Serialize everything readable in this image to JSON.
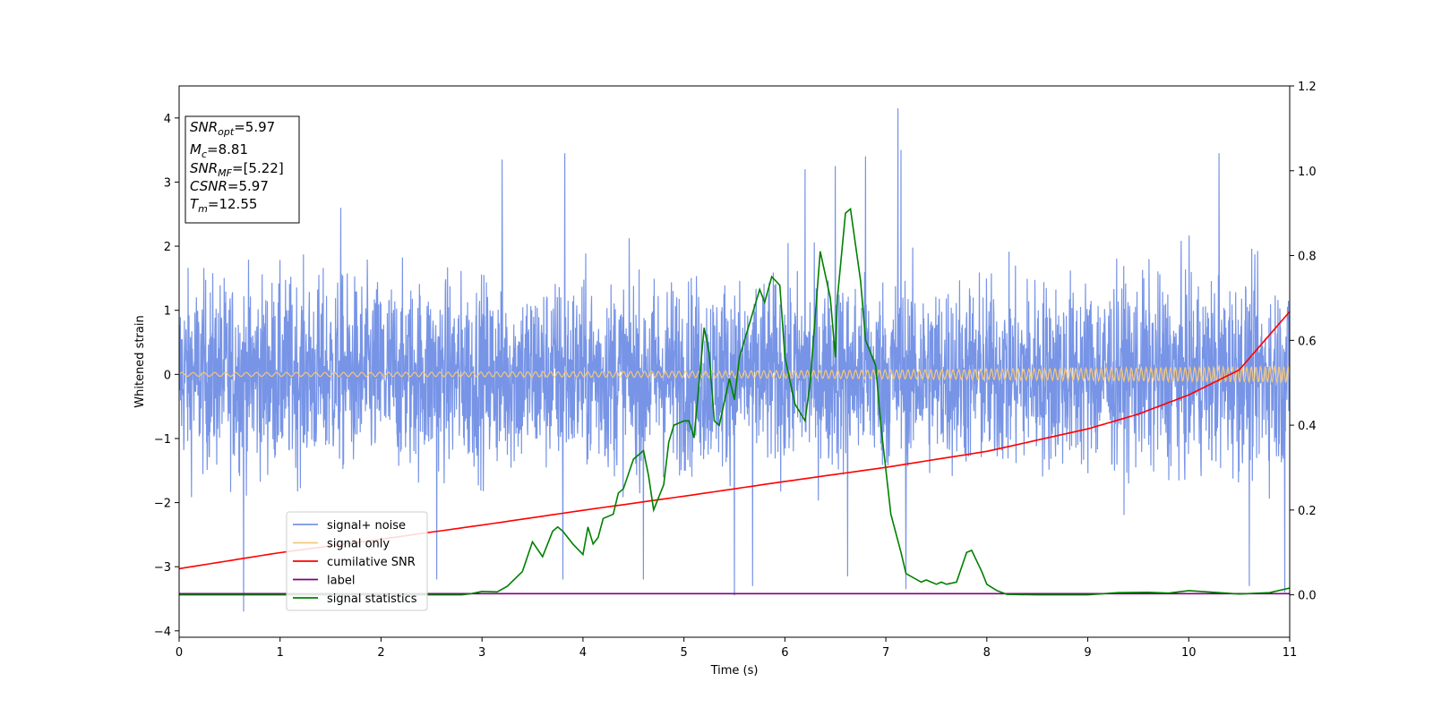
{
  "chart_data": {
    "type": "line",
    "xlabel": "Time (s)",
    "ylabel": "Whitened strain",
    "xlim": [
      0,
      11
    ],
    "ylim_left": [
      -4.1,
      4.5
    ],
    "ylim_right": [
      -0.1,
      1.2
    ],
    "x_ticks": [
      0,
      1,
      2,
      3,
      4,
      5,
      6,
      7,
      8,
      9,
      10,
      11
    ],
    "y_ticks_left": [
      "−4",
      "−3",
      "−2",
      "−1",
      "0",
      "1",
      "2",
      "3",
      "4"
    ],
    "y_ticks_right": [
      "0.0",
      "0.2",
      "0.4",
      "0.6",
      "0.8",
      "1.0",
      "1.2"
    ],
    "info_box": [
      {
        "main": "SNR",
        "sub": "opt",
        "rest": "=5.97"
      },
      {
        "main": "M",
        "sub": "c",
        "rest": "=8.81"
      },
      {
        "main": "SNR",
        "sub": "MF",
        "rest": "=[5.22]"
      },
      {
        "main": "CSNR",
        "sub": "",
        "rest": "=5.97"
      },
      {
        "main": "T",
        "sub": "m",
        "rest": "=12.55"
      }
    ],
    "legend": {
      "placement": "lower-left",
      "entries": [
        {
          "label": "signal+ noise",
          "color": "#7794e6"
        },
        {
          "label": "signal only",
          "color": "#f5c77a"
        },
        {
          "label": "cumilative SNR",
          "color": "#ff0000"
        },
        {
          "label": "label",
          "color": "#800080"
        },
        {
          "label": "signal statistics",
          "color": "#008000"
        }
      ]
    },
    "series": [
      {
        "name": "signal+ noise",
        "axis": "left",
        "style": "noise",
        "envelope_abs": 1.9,
        "envelope_extremes": [
          [
            0.64,
            -3.7
          ],
          [
            1.6,
            2.6
          ],
          [
            2.55,
            -3.2
          ],
          [
            3.2,
            3.35
          ],
          [
            3.8,
            -3.2
          ],
          [
            3.82,
            3.45
          ],
          [
            4.6,
            -3.2
          ],
          [
            5.5,
            -3.45
          ],
          [
            5.68,
            -3.3
          ],
          [
            6.2,
            3.2
          ],
          [
            6.5,
            3.25
          ],
          [
            6.62,
            -3.15
          ],
          [
            6.8,
            3.4
          ],
          [
            7.12,
            4.15
          ],
          [
            7.15,
            3.5
          ],
          [
            7.2,
            -3.35
          ],
          [
            10.3,
            3.45
          ],
          [
            10.6,
            -3.3
          ],
          [
            10.95,
            -3.4
          ]
        ]
      },
      {
        "name": "signal only",
        "axis": "left",
        "style": "chirp",
        "amplitude_start": 0.03,
        "amplitude_end": 0.13
      },
      {
        "name": "cumilative SNR",
        "axis": "left",
        "x": [
          0,
          1,
          2,
          3,
          4,
          5,
          6,
          7,
          8,
          9,
          9.5,
          10,
          10.5,
          11
        ],
        "y": [
          -3.03,
          -2.78,
          -2.57,
          -2.35,
          -2.12,
          -1.9,
          -1.67,
          -1.45,
          -1.2,
          -0.85,
          -0.62,
          -0.32,
          0.07,
          0.98
        ]
      },
      {
        "name": "label",
        "axis": "left",
        "x": [
          0,
          11
        ],
        "y": [
          -3.42,
          -3.42
        ]
      },
      {
        "name": "signal statistics",
        "axis": "right",
        "x": [
          0,
          0.5,
          1,
          1.5,
          2,
          2.5,
          2.8,
          2.9,
          3.0,
          3.15,
          3.25,
          3.4,
          3.5,
          3.6,
          3.7,
          3.75,
          3.8,
          3.9,
          4.0,
          4.05,
          4.1,
          4.15,
          4.2,
          4.3,
          4.35,
          4.4,
          4.5,
          4.6,
          4.65,
          4.7,
          4.8,
          4.85,
          4.9,
          5.0,
          5.05,
          5.1,
          5.2,
          5.25,
          5.3,
          5.35,
          5.45,
          5.5,
          5.55,
          5.65,
          5.75,
          5.8,
          5.87,
          5.95,
          6.0,
          6.1,
          6.2,
          6.25,
          6.35,
          6.45,
          6.5,
          6.52,
          6.6,
          6.65,
          6.75,
          6.8,
          6.9,
          6.95,
          7.05,
          7.15,
          7.2,
          7.35,
          7.4,
          7.45,
          7.5,
          7.55,
          7.6,
          7.7,
          7.8,
          7.85,
          7.9,
          7.95,
          8.0,
          8.1,
          8.2,
          8.5,
          9.0,
          9.3,
          9.6,
          9.8,
          10.0,
          10.3,
          10.5,
          10.8,
          11.0
        ],
        "y": [
          0.0,
          0.0,
          0.0,
          0.0,
          0.0,
          0.0,
          0.0,
          0.003,
          0.008,
          0.007,
          0.02,
          0.055,
          0.125,
          0.09,
          0.15,
          0.16,
          0.15,
          0.12,
          0.095,
          0.16,
          0.12,
          0.135,
          0.18,
          0.19,
          0.24,
          0.25,
          0.32,
          0.34,
          0.28,
          0.2,
          0.26,
          0.36,
          0.4,
          0.41,
          0.41,
          0.37,
          0.63,
          0.57,
          0.41,
          0.4,
          0.51,
          0.46,
          0.56,
          0.64,
          0.72,
          0.69,
          0.75,
          0.73,
          0.56,
          0.45,
          0.41,
          0.5,
          0.81,
          0.7,
          0.56,
          0.7,
          0.9,
          0.91,
          0.74,
          0.6,
          0.54,
          0.4,
          0.19,
          0.1,
          0.05,
          0.03,
          0.035,
          0.03,
          0.025,
          0.03,
          0.025,
          0.03,
          0.1,
          0.105,
          0.08,
          0.055,
          0.025,
          0.01,
          0.001,
          0.0,
          0.0,
          0.005,
          0.006,
          0.004,
          0.01,
          0.005,
          0.002,
          0.005,
          0.016
        ]
      }
    ]
  }
}
